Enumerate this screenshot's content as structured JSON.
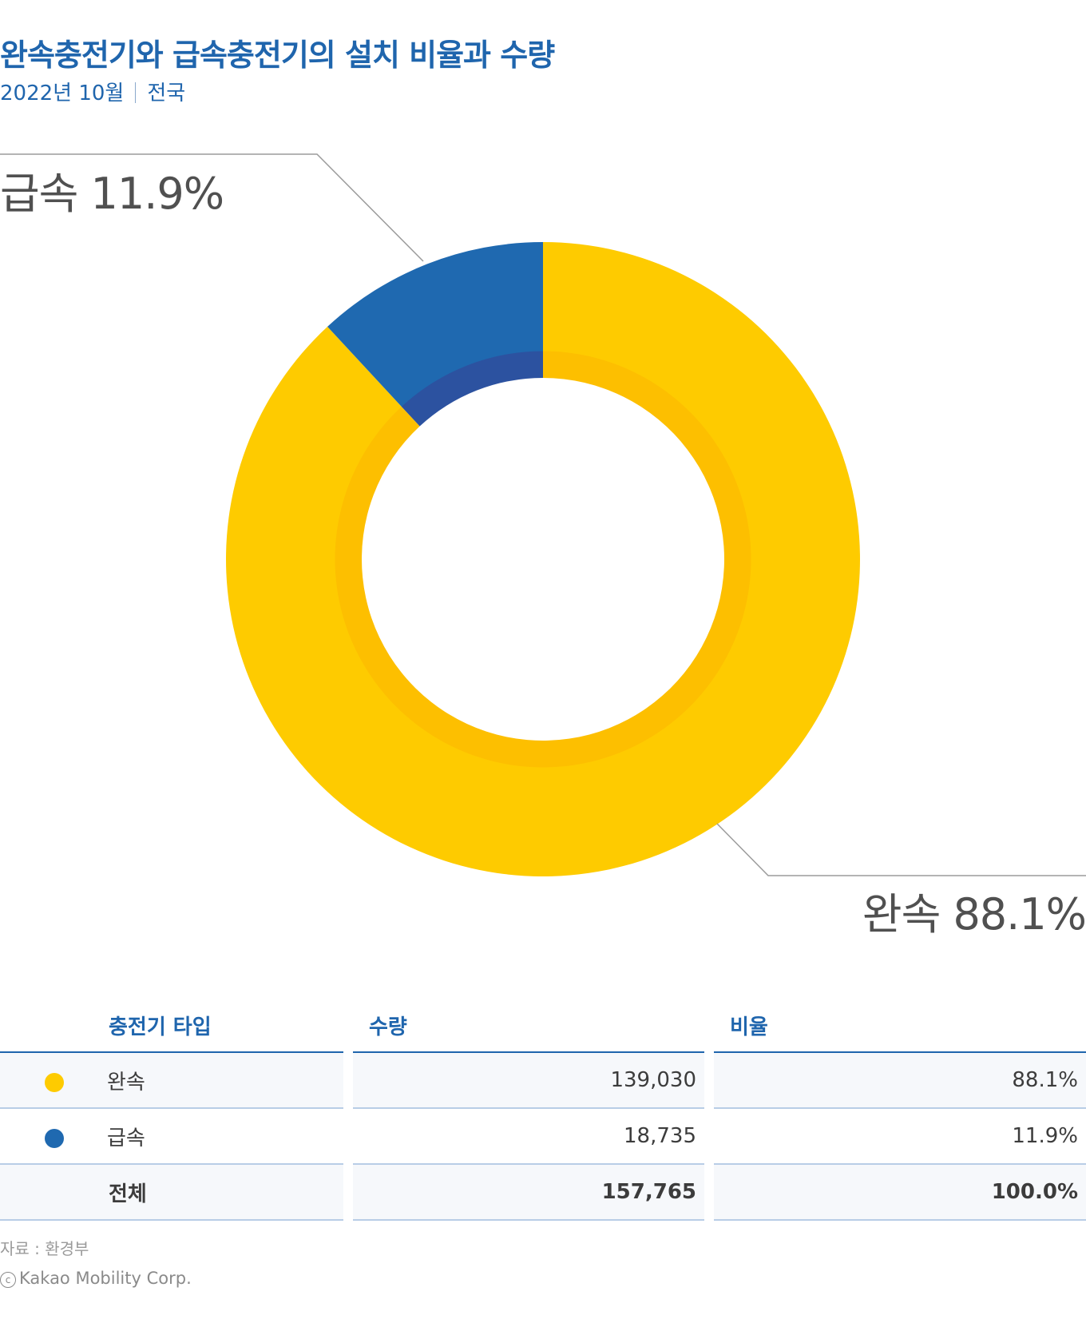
{
  "chart_data": {
    "type": "pie",
    "title": "완속충전기와 급속충전기의 설치 비율과 수량",
    "subtitle_date": "2022년 10월",
    "subtitle_region": "전국",
    "slices": [
      {
        "label": "완속",
        "value": 88.1,
        "display": "88.1%",
        "color": "#fecb00",
        "inner_color": "#fdbf00"
      },
      {
        "label": "급속",
        "value": 11.9,
        "display": "11.9%",
        "color": "#1f69b0",
        "inner_color": "#2c52a0"
      }
    ],
    "callouts": {
      "slow": "완속 88.1%",
      "fast": "급속 11.9%"
    }
  },
  "table": {
    "headers": [
      "충전기 타입",
      "수량",
      "비율"
    ],
    "rows": [
      {
        "type": "완속",
        "count": "139,030",
        "ratio": "88.1%",
        "color": "#fecb00"
      },
      {
        "type": "급속",
        "count": "18,735",
        "ratio": "11.9%",
        "color": "#1f69b0"
      }
    ],
    "total": {
      "type": "전체",
      "count": "157,765",
      "ratio": "100.0%"
    }
  },
  "footer": {
    "source": "자료 : 환경부",
    "copyright_symbol": "c",
    "copyright": "Kakao Mobility Corp."
  }
}
